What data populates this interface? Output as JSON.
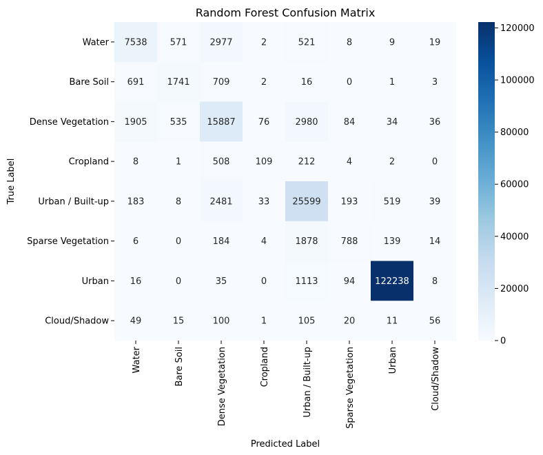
{
  "chart_data": {
    "type": "heatmap",
    "title": "Random Forest Confusion Matrix",
    "xlabel": "Predicted Label",
    "ylabel": "True Label",
    "x_categories": [
      "Water",
      "Bare Soil",
      "Dense Vegetation",
      "Cropland",
      "Urban / Built-up",
      "Sparse Vegetation",
      "Urban",
      "Cloud/Shadow"
    ],
    "y_categories": [
      "Water",
      "Bare Soil",
      "Dense Vegetation",
      "Cropland",
      "Urban / Built-up",
      "Sparse Vegetation",
      "Urban",
      "Cloud/Shadow"
    ],
    "values": [
      [
        7538,
        571,
        2977,
        2,
        521,
        8,
        9,
        19
      ],
      [
        691,
        1741,
        709,
        2,
        16,
        0,
        1,
        3
      ],
      [
        1905,
        535,
        15887,
        76,
        2980,
        84,
        34,
        36
      ],
      [
        8,
        1,
        508,
        109,
        212,
        4,
        2,
        0
      ],
      [
        183,
        8,
        2481,
        33,
        25599,
        193,
        519,
        39
      ],
      [
        6,
        0,
        184,
        4,
        1878,
        788,
        139,
        14
      ],
      [
        16,
        0,
        35,
        0,
        1113,
        94,
        122238,
        8
      ],
      [
        49,
        15,
        100,
        1,
        105,
        20,
        11,
        56
      ]
    ],
    "colormap": "Blues",
    "color_min": "#f7fbff",
    "color_max": "#08306b",
    "colorbar": {
      "range": [
        0,
        122238
      ],
      "ticks": [
        0,
        20000,
        40000,
        60000,
        80000,
        100000,
        120000
      ],
      "tick_labels": [
        "0",
        "20000",
        "40000",
        "60000",
        "80000",
        "100000",
        "120000"
      ]
    }
  }
}
